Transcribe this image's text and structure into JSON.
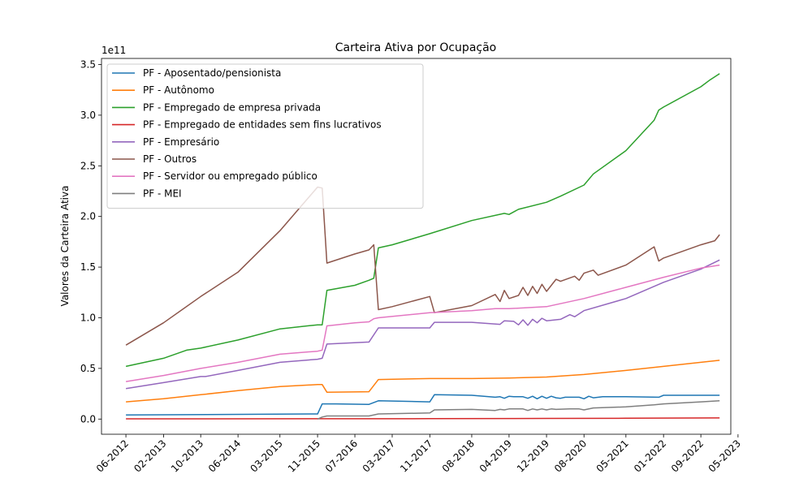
{
  "chart_data": {
    "type": "line",
    "title": "Carteira Ativa por Ocupação",
    "xlabel": "",
    "ylabel": "Valores da Carteira Ativa",
    "y_multiplier_label": "1e11",
    "y_multiplier": 100000000000,
    "ylim": [
      -0.15,
      3.56
    ],
    "xlim": [
      "2011-12-25",
      "2023-03-15"
    ],
    "y_ticks": [
      0.0,
      0.5,
      1.0,
      1.5,
      2.0,
      2.5,
      3.0,
      3.5
    ],
    "y_tick_labels": [
      "0.0",
      "0.5",
      "1.0",
      "1.5",
      "2.0",
      "2.5",
      "3.0",
      "3.5"
    ],
    "x_ticks": [
      "2012-06-01",
      "2013-02-01",
      "2013-10-01",
      "2014-06-01",
      "2015-03-01",
      "2015-11-01",
      "2016-07-01",
      "2017-03-01",
      "2017-11-01",
      "2018-08-01",
      "2019-04-01",
      "2019-12-01",
      "2020-08-01",
      "2021-05-01",
      "2022-01-01",
      "2022-09-01",
      "2023-05-01"
    ],
    "x_tick_labels": [
      "06-2012",
      "02-2013",
      "10-2013",
      "06-2014",
      "03-2015",
      "11-2015",
      "07-2016",
      "03-2017",
      "11-2017",
      "08-2018",
      "04-2019",
      "12-2019",
      "08-2020",
      "05-2021",
      "01-2022",
      "09-2022",
      "05-2023"
    ],
    "grid": false,
    "legend_position": "upper-left",
    "series": [
      {
        "name": "PF - Aposentado/pensionista",
        "color": "#1f77b4",
        "points": [
          [
            "2012-06-01",
            0.04
          ],
          [
            "2015-11-01",
            0.05
          ],
          [
            "2015-12-01",
            0.15
          ],
          [
            "2016-03-01",
            0.15
          ],
          [
            "2016-10-01",
            0.145
          ],
          [
            "2016-12-01",
            0.18
          ],
          [
            "2017-11-01",
            0.17
          ],
          [
            "2017-12-01",
            0.24
          ],
          [
            "2018-08-01",
            0.235
          ],
          [
            "2019-01-01",
            0.215
          ],
          [
            "2019-02-01",
            0.22
          ],
          [
            "2019-03-01",
            0.205
          ],
          [
            "2019-04-01",
            0.225
          ],
          [
            "2019-05-01",
            0.22
          ],
          [
            "2019-07-01",
            0.22
          ],
          [
            "2019-08-01",
            0.205
          ],
          [
            "2019-09-01",
            0.225
          ],
          [
            "2019-10-01",
            0.2
          ],
          [
            "2019-11-01",
            0.225
          ],
          [
            "2019-12-01",
            0.205
          ],
          [
            "2020-01-01",
            0.225
          ],
          [
            "2020-02-01",
            0.21
          ],
          [
            "2020-03-01",
            0.205
          ],
          [
            "2020-04-01",
            0.215
          ],
          [
            "2020-07-01",
            0.215
          ],
          [
            "2020-08-01",
            0.2
          ],
          [
            "2020-09-01",
            0.225
          ],
          [
            "2020-10-01",
            0.21
          ],
          [
            "2020-12-01",
            0.22
          ],
          [
            "2021-05-01",
            0.22
          ],
          [
            "2021-12-01",
            0.215
          ],
          [
            "2022-01-01",
            0.235
          ],
          [
            "2022-09-01",
            0.235
          ],
          [
            "2023-01-01",
            0.235
          ]
        ]
      },
      {
        "name": "PF - Autônomo",
        "color": "#ff7f0e",
        "points": [
          [
            "2012-06-01",
            0.17
          ],
          [
            "2013-02-01",
            0.2
          ],
          [
            "2013-10-01",
            0.24
          ],
          [
            "2014-06-01",
            0.28
          ],
          [
            "2015-03-01",
            0.32
          ],
          [
            "2015-11-01",
            0.34
          ],
          [
            "2015-12-01",
            0.34
          ],
          [
            "2016-01-01",
            0.265
          ],
          [
            "2016-10-01",
            0.27
          ],
          [
            "2016-12-01",
            0.39
          ],
          [
            "2017-11-01",
            0.4
          ],
          [
            "2018-08-01",
            0.4
          ],
          [
            "2019-04-01",
            0.405
          ],
          [
            "2019-12-01",
            0.415
          ],
          [
            "2020-08-01",
            0.44
          ],
          [
            "2021-05-01",
            0.48
          ],
          [
            "2022-01-01",
            0.52
          ],
          [
            "2022-09-01",
            0.56
          ],
          [
            "2023-01-01",
            0.58
          ]
        ]
      },
      {
        "name": "PF - Empregado de empresa privada",
        "color": "#2ca02c",
        "points": [
          [
            "2012-06-01",
            0.52
          ],
          [
            "2013-02-01",
            0.6
          ],
          [
            "2013-07-01",
            0.68
          ],
          [
            "2013-10-01",
            0.7
          ],
          [
            "2014-06-01",
            0.78
          ],
          [
            "2015-03-01",
            0.89
          ],
          [
            "2015-11-01",
            0.93
          ],
          [
            "2015-12-01",
            0.93
          ],
          [
            "2016-01-01",
            1.27
          ],
          [
            "2016-07-01",
            1.32
          ],
          [
            "2016-10-01",
            1.37
          ],
          [
            "2016-11-01",
            1.39
          ],
          [
            "2016-12-01",
            1.69
          ],
          [
            "2017-03-01",
            1.72
          ],
          [
            "2017-11-01",
            1.83
          ],
          [
            "2018-08-01",
            1.96
          ],
          [
            "2019-03-01",
            2.03
          ],
          [
            "2019-04-01",
            2.02
          ],
          [
            "2019-06-01",
            2.07
          ],
          [
            "2019-12-01",
            2.14
          ],
          [
            "2020-03-01",
            2.2
          ],
          [
            "2020-08-01",
            2.31
          ],
          [
            "2020-10-01",
            2.42
          ],
          [
            "2021-05-01",
            2.65
          ],
          [
            "2021-11-01",
            2.95
          ],
          [
            "2021-12-01",
            3.05
          ],
          [
            "2022-01-01",
            3.08
          ],
          [
            "2022-09-01",
            3.28
          ],
          [
            "2022-11-01",
            3.35
          ],
          [
            "2023-01-01",
            3.41
          ]
        ]
      },
      {
        "name": "PF - Empregado de entidades sem fins lucrativos",
        "color": "#d62728",
        "points": [
          [
            "2012-06-01",
            0.002
          ],
          [
            "2015-11-01",
            0.003
          ],
          [
            "2017-11-01",
            0.004
          ],
          [
            "2019-12-01",
            0.006
          ],
          [
            "2021-05-01",
            0.008
          ],
          [
            "2023-01-01",
            0.011
          ]
        ]
      },
      {
        "name": "PF - Empresário",
        "color": "#9467bd",
        "points": [
          [
            "2012-06-01",
            0.3
          ],
          [
            "2013-02-01",
            0.36
          ],
          [
            "2013-10-01",
            0.42
          ],
          [
            "2013-11-01",
            0.42
          ],
          [
            "2014-06-01",
            0.48
          ],
          [
            "2015-03-01",
            0.56
          ],
          [
            "2015-11-01",
            0.59
          ],
          [
            "2015-12-01",
            0.6
          ],
          [
            "2016-01-01",
            0.74
          ],
          [
            "2016-10-01",
            0.76
          ],
          [
            "2016-12-01",
            0.9
          ],
          [
            "2017-11-01",
            0.9
          ],
          [
            "2017-12-01",
            0.955
          ],
          [
            "2018-08-01",
            0.955
          ],
          [
            "2019-02-01",
            0.935
          ],
          [
            "2019-03-01",
            0.97
          ],
          [
            "2019-05-01",
            0.965
          ],
          [
            "2019-06-01",
            0.93
          ],
          [
            "2019-07-01",
            0.98
          ],
          [
            "2019-08-01",
            0.925
          ],
          [
            "2019-09-01",
            0.985
          ],
          [
            "2019-10-01",
            0.95
          ],
          [
            "2019-11-01",
            0.995
          ],
          [
            "2019-12-01",
            0.97
          ],
          [
            "2020-03-01",
            0.985
          ],
          [
            "2020-05-01",
            1.03
          ],
          [
            "2020-06-01",
            1.01
          ],
          [
            "2020-08-01",
            1.07
          ],
          [
            "2021-05-01",
            1.19
          ],
          [
            "2022-01-01",
            1.35
          ],
          [
            "2022-09-01",
            1.48
          ],
          [
            "2023-01-01",
            1.57
          ]
        ]
      },
      {
        "name": "PF - Outros",
        "color": "#8c564b",
        "points": [
          [
            "2012-06-01",
            0.73
          ],
          [
            "2013-02-01",
            0.95
          ],
          [
            "2013-10-01",
            1.21
          ],
          [
            "2014-06-01",
            1.45
          ],
          [
            "2015-03-01",
            1.86
          ],
          [
            "2015-11-01",
            2.29
          ],
          [
            "2015-12-01",
            2.28
          ],
          [
            "2016-01-01",
            1.54
          ],
          [
            "2016-07-01",
            1.63
          ],
          [
            "2016-10-01",
            1.67
          ],
          [
            "2016-11-01",
            1.72
          ],
          [
            "2016-12-01",
            1.08
          ],
          [
            "2017-03-01",
            1.11
          ],
          [
            "2017-11-01",
            1.21
          ],
          [
            "2017-12-01",
            1.05
          ],
          [
            "2018-08-01",
            1.12
          ],
          [
            "2019-01-01",
            1.23
          ],
          [
            "2019-02-01",
            1.16
          ],
          [
            "2019-03-01",
            1.27
          ],
          [
            "2019-04-01",
            1.19
          ],
          [
            "2019-06-01",
            1.22
          ],
          [
            "2019-07-01",
            1.3
          ],
          [
            "2019-08-01",
            1.22
          ],
          [
            "2019-09-01",
            1.31
          ],
          [
            "2019-10-01",
            1.24
          ],
          [
            "2019-11-01",
            1.33
          ],
          [
            "2019-12-01",
            1.26
          ],
          [
            "2020-02-01",
            1.38
          ],
          [
            "2020-03-01",
            1.36
          ],
          [
            "2020-06-01",
            1.41
          ],
          [
            "2020-07-01",
            1.37
          ],
          [
            "2020-08-01",
            1.44
          ],
          [
            "2020-10-01",
            1.47
          ],
          [
            "2020-11-01",
            1.42
          ],
          [
            "2021-05-01",
            1.52
          ],
          [
            "2021-11-01",
            1.7
          ],
          [
            "2021-12-01",
            1.56
          ],
          [
            "2022-01-01",
            1.59
          ],
          [
            "2022-09-01",
            1.72
          ],
          [
            "2022-12-01",
            1.76
          ],
          [
            "2023-01-01",
            1.82
          ]
        ]
      },
      {
        "name": "PF - Servidor ou empregado público",
        "color": "#e377c2",
        "points": [
          [
            "2012-06-01",
            0.37
          ],
          [
            "2013-02-01",
            0.43
          ],
          [
            "2013-10-01",
            0.5
          ],
          [
            "2014-06-01",
            0.56
          ],
          [
            "2015-03-01",
            0.64
          ],
          [
            "2015-11-01",
            0.67
          ],
          [
            "2015-12-01",
            0.68
          ],
          [
            "2016-01-01",
            0.92
          ],
          [
            "2016-07-01",
            0.95
          ],
          [
            "2016-10-01",
            0.96
          ],
          [
            "2016-11-01",
            0.99
          ],
          [
            "2016-12-01",
            1.0
          ],
          [
            "2017-11-01",
            1.05
          ],
          [
            "2018-08-01",
            1.07
          ],
          [
            "2019-01-01",
            1.09
          ],
          [
            "2019-04-01",
            1.09
          ],
          [
            "2019-12-01",
            1.11
          ],
          [
            "2020-08-01",
            1.19
          ],
          [
            "2021-05-01",
            1.3
          ],
          [
            "2022-01-01",
            1.4
          ],
          [
            "2022-09-01",
            1.49
          ],
          [
            "2023-01-01",
            1.52
          ]
        ]
      },
      {
        "name": "PF - MEI",
        "color": "#7f7f7f",
        "points": [
          [
            "2015-11-01",
            0.0
          ],
          [
            "2015-12-01",
            0.02
          ],
          [
            "2016-01-01",
            0.03
          ],
          [
            "2016-10-01",
            0.03
          ],
          [
            "2016-12-01",
            0.05
          ],
          [
            "2017-11-01",
            0.06
          ],
          [
            "2017-12-01",
            0.09
          ],
          [
            "2018-08-01",
            0.095
          ],
          [
            "2019-01-01",
            0.085
          ],
          [
            "2019-02-01",
            0.095
          ],
          [
            "2019-03-01",
            0.09
          ],
          [
            "2019-04-01",
            0.1
          ],
          [
            "2019-07-01",
            0.1
          ],
          [
            "2019-08-01",
            0.085
          ],
          [
            "2019-09-01",
            0.1
          ],
          [
            "2019-10-01",
            0.09
          ],
          [
            "2019-11-01",
            0.1
          ],
          [
            "2019-12-01",
            0.09
          ],
          [
            "2020-01-01",
            0.1
          ],
          [
            "2020-02-01",
            0.095
          ],
          [
            "2020-05-01",
            0.1
          ],
          [
            "2020-07-01",
            0.1
          ],
          [
            "2020-08-01",
            0.09
          ],
          [
            "2020-10-01",
            0.11
          ],
          [
            "2021-05-01",
            0.12
          ],
          [
            "2021-11-01",
            0.14
          ],
          [
            "2022-01-01",
            0.15
          ],
          [
            "2022-09-01",
            0.17
          ],
          [
            "2023-01-01",
            0.18
          ]
        ]
      }
    ]
  }
}
